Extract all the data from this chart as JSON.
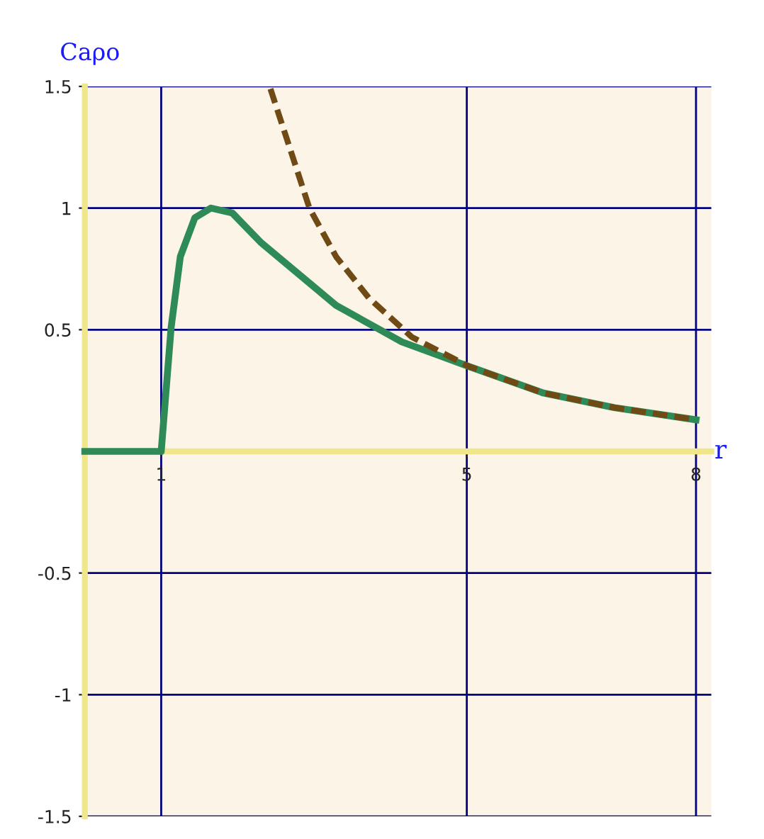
{
  "chart_data": {
    "type": "line",
    "xlabel": "r",
    "ylabel": "Caρo",
    "xlim": [
      0,
      8.2
    ],
    "ylim": [
      -1.5,
      1.5
    ],
    "xticks": [
      1,
      5,
      8
    ],
    "yticks": [
      {
        "value": -1.5,
        "label": "-1.5"
      },
      -1,
      -0.5,
      0.5,
      1,
      {
        "value": 1.5,
        "label": "1.5"
      }
    ],
    "grid": true,
    "marker": "none",
    "series": [
      {
        "color": "#2e8b57",
        "line_style": "solid",
        "x": [
          0,
          1,
          1.13,
          1.25,
          1.44,
          1.65,
          1.93,
          2.3,
          3.29,
          4.15,
          5.02,
          6.0,
          6.93,
          8.0
        ],
        "values": [
          0,
          0,
          0.51,
          0.8,
          0.96,
          1.0,
          0.98,
          0.86,
          0.6,
          0.45,
          0.35,
          0.24,
          0.18,
          0.13
        ]
      },
      {
        "color": "#704a14",
        "line_style": "dashed",
        "x": [
          2.43,
          2.94,
          3.29,
          3.72,
          4.28,
          5.02,
          6.0,
          6.93,
          8.0
        ],
        "values": [
          1.49,
          1.0,
          0.8,
          0.63,
          0.47,
          0.35,
          0.24,
          0.18,
          0.13
        ]
      }
    ]
  }
}
